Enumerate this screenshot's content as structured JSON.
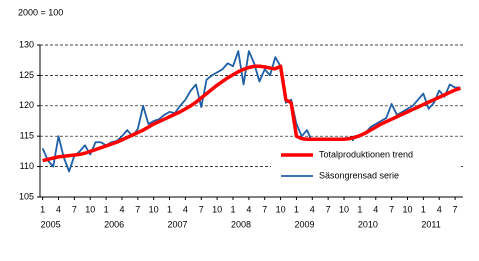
{
  "chart_data": {
    "type": "line",
    "y_label": "2000 = 100",
    "categories": [
      "1",
      null,
      null,
      "4",
      null,
      null,
      "7",
      null,
      null,
      "10",
      null,
      null,
      "1",
      null,
      null,
      "4",
      null,
      null,
      "7",
      null,
      null,
      "10",
      null,
      null,
      "1",
      null,
      null,
      "4",
      null,
      null,
      "7",
      null,
      null,
      "10",
      null,
      null,
      "1",
      null,
      null,
      "4",
      null,
      null,
      "7",
      null,
      null,
      "10",
      null,
      null,
      "1",
      null,
      null,
      "4",
      null,
      null,
      "7",
      null,
      null,
      "10",
      null,
      null,
      "1",
      null,
      null,
      "4",
      null,
      null,
      "7",
      null,
      null,
      "10",
      null,
      null,
      "1",
      null,
      null,
      "4",
      null,
      null,
      "7",
      null
    ],
    "years": [
      "2005",
      "2006",
      "2007",
      "2008",
      "2009",
      "2010",
      "2011"
    ],
    "series": [
      {
        "name": "Totalproduktionen trend",
        "color": "#ff0000",
        "width": 3.5,
        "values": [
          111.0,
          111.2,
          111.4,
          111.6,
          111.7,
          111.8,
          111.9,
          112.0,
          112.2,
          112.5,
          112.8,
          113.1,
          113.4,
          113.7,
          114.0,
          114.4,
          114.8,
          115.2,
          115.6,
          116.0,
          116.5,
          117.0,
          117.4,
          117.8,
          118.2,
          118.6,
          119.0,
          119.5,
          120.0,
          120.6,
          121.3,
          122.0,
          122.7,
          123.4,
          124.0,
          124.6,
          125.1,
          125.6,
          126.0,
          126.3,
          126.5,
          126.5,
          126.4,
          126.2,
          126.1,
          126.5,
          121.0,
          120.5,
          115.0,
          114.6,
          114.5,
          114.5,
          114.5,
          114.5,
          114.5,
          114.5,
          114.5,
          114.5,
          114.6,
          114.8,
          115.1,
          115.5,
          116.0,
          116.5,
          117.0,
          117.4,
          117.8,
          118.2,
          118.6,
          119.0,
          119.4,
          119.8,
          120.2,
          120.6,
          121.0,
          121.4,
          121.8,
          122.2,
          122.6,
          122.9
        ]
      },
      {
        "name": "Säsongrensad serie",
        "color": "#1f5fa8",
        "width": 1.8,
        "values": [
          113.0,
          111.0,
          110.0,
          115.0,
          111.5,
          109.2,
          111.8,
          112.5,
          113.5,
          112.0,
          114.0,
          114.0,
          113.5,
          114.0,
          114.2,
          115.0,
          116.0,
          115.0,
          116.2,
          120.0,
          117.0,
          117.5,
          117.8,
          118.5,
          119.0,
          118.8,
          120.0,
          121.0,
          122.5,
          123.5,
          119.8,
          124.3,
          125.0,
          125.5,
          126.0,
          127.0,
          126.5,
          129.0,
          123.5,
          129.0,
          127.0,
          124.0,
          126.0,
          125.0,
          128.0,
          126.5,
          120.5,
          121.0,
          117.0,
          115.0,
          116.0,
          114.0,
          112.2,
          114.0,
          114.5,
          114.0,
          114.0,
          114.0,
          112.8,
          115.0,
          115.0,
          115.5,
          116.5,
          117.0,
          117.5,
          118.0,
          120.3,
          118.5,
          119.0,
          119.5,
          120.0,
          121.0,
          122.0,
          119.5,
          120.5,
          122.5,
          121.5,
          123.5,
          123.0,
          123.0
        ]
      }
    ],
    "ylim": [
      105,
      130
    ],
    "yticks": [
      105,
      110,
      115,
      120,
      125,
      130
    ],
    "grid": true,
    "legend": "lower right"
  }
}
